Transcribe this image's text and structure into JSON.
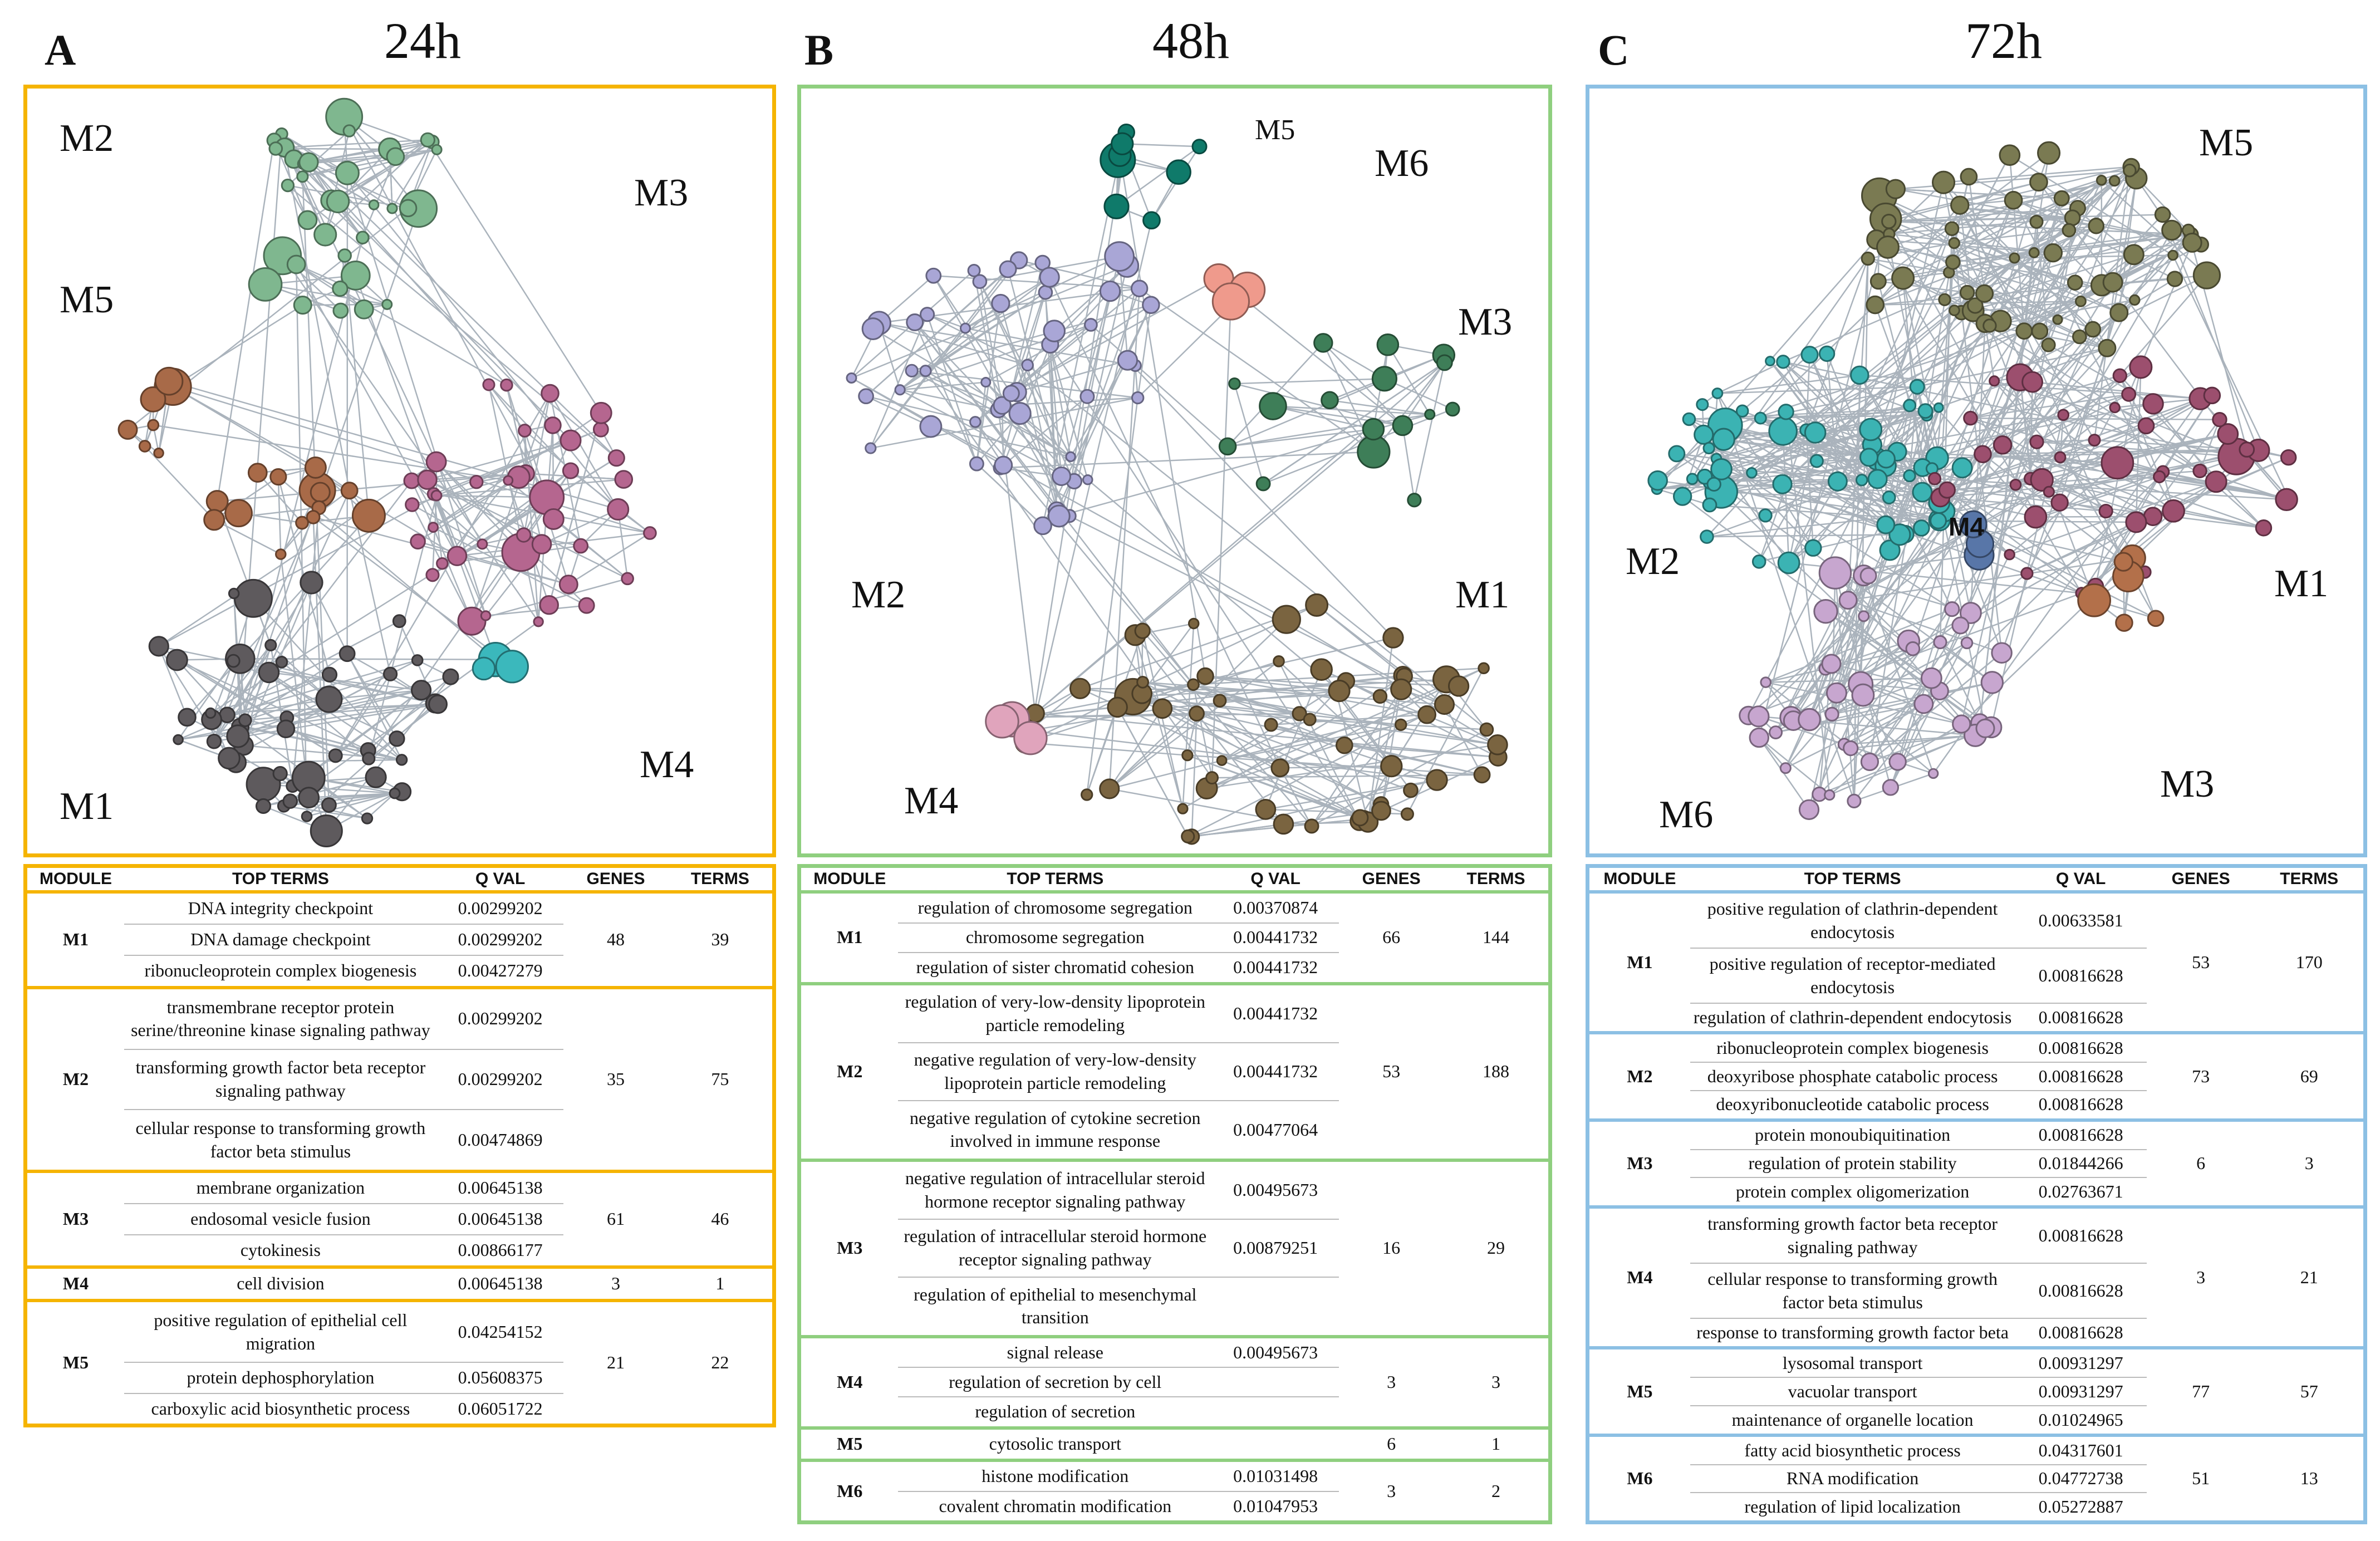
{
  "panels": [
    {
      "letter": "A",
      "time": "24h",
      "color": "#f5b400",
      "modules": [
        "M2",
        "M5",
        "M3",
        "M1",
        "M4"
      ],
      "nodes": {
        "M2": "#7fb78f",
        "M5": "#7fb78f",
        "M3": "#b5668f",
        "M1": "#5e5a5d",
        "M4": "#3bb8bc",
        "extra": "#a86a48"
      },
      "table": {
        "headers": [
          "MODULE",
          "TOP TERMS",
          "Q VAL",
          "GENES",
          "TERMS"
        ],
        "groups": [
          {
            "module": "M1",
            "genes": "48",
            "terms": "39",
            "rows": [
              {
                "term": "DNA integrity checkpoint",
                "q": "0.00299202"
              },
              {
                "term": "DNA damage checkpoint",
                "q": "0.00299202"
              },
              {
                "term": "ribonucleoprotein complex biogenesis",
                "q": "0.00427279"
              }
            ]
          },
          {
            "module": "M2",
            "genes": "35",
            "terms": "75",
            "rows": [
              {
                "term": "transmembrane receptor protein serine/threonine kinase signaling pathway",
                "q": "0.00299202"
              },
              {
                "term": "transforming growth factor beta receptor signaling pathway",
                "q": "0.00299202"
              },
              {
                "term": "cellular response to transforming growth factor beta stimulus",
                "q": "0.00474869"
              }
            ]
          },
          {
            "module": "M3",
            "genes": "61",
            "terms": "46",
            "rows": [
              {
                "term": "membrane organization",
                "q": "0.00645138"
              },
              {
                "term": "endosomal vesicle fusion",
                "q": "0.00645138"
              },
              {
                "term": "cytokinesis",
                "q": "0.00866177"
              }
            ]
          },
          {
            "module": "M4",
            "genes": "3",
            "terms": "1",
            "rows": [
              {
                "term": "cell division",
                "q": "0.00645138"
              }
            ]
          },
          {
            "module": "M5",
            "genes": "21",
            "terms": "22",
            "rows": [
              {
                "term": "positive regulation of epithelial cell migration",
                "q": "0.04254152"
              },
              {
                "term": "protein dephosphorylation",
                "q": "0.05608375"
              },
              {
                "term": "carboxylic acid biosynthetic process",
                "q": "0.06051722"
              }
            ]
          }
        ]
      }
    },
    {
      "letter": "B",
      "time": "48h",
      "color": "#8fcf7f",
      "modules": [
        "M5",
        "M6",
        "M3",
        "M2",
        "M1",
        "M4"
      ],
      "nodes": {
        "M5": "#0f7a6a",
        "M6": "#ef9a8c",
        "M3": "#3e7e58",
        "M2": "#a9a6d6",
        "M1": "#7a6440",
        "M4": "#e0a4bc"
      },
      "table": {
        "headers": [
          "MODULE",
          "TOP TERMS",
          "Q VAL",
          "GENES",
          "TERMS"
        ],
        "groups": [
          {
            "module": "M1",
            "genes": "66",
            "terms": "144",
            "rows": [
              {
                "term": "regulation of chromosome segregation",
                "q": "0.00370874"
              },
              {
                "term": "chromosome segregation",
                "q": "0.00441732"
              },
              {
                "term": "regulation of sister chromatid cohesion",
                "q": "0.00441732"
              }
            ]
          },
          {
            "module": "M2",
            "genes": "53",
            "terms": "188",
            "rows": [
              {
                "term": "regulation of very-low-density lipoprotein particle remodeling",
                "q": "0.00441732"
              },
              {
                "term": "negative regulation of very-low-density lipoprotein particle remodeling",
                "q": "0.00441732"
              },
              {
                "term": "negative regulation of cytokine secretion involved in immune response",
                "q": "0.00477064"
              }
            ]
          },
          {
            "module": "M3",
            "genes": "16",
            "terms": "29",
            "rows": [
              {
                "term": "negative regulation of intracellular steroid hormone receptor signaling pathway",
                "q": "0.00495673"
              },
              {
                "term": "regulation of intracellular steroid hormone receptor signaling pathway",
                "q": "0.00879251"
              },
              {
                "term": "regulation of epithelial to mesenchymal transition",
                "q": ""
              }
            ]
          },
          {
            "module": "M4",
            "genes": "3",
            "terms": "3",
            "rows": [
              {
                "term": "signal release",
                "q": "0.00495673"
              },
              {
                "term": "regulation of secretion by cell",
                "q": ""
              },
              {
                "term": "regulation of secretion",
                "q": ""
              }
            ]
          },
          {
            "module": "M5",
            "genes": "6",
            "terms": "1",
            "rows": [
              {
                "term": "cytosolic transport",
                "q": ""
              }
            ]
          },
          {
            "module": "M6",
            "genes": "3",
            "terms": "2",
            "rows": [
              {
                "term": "histone modification",
                "q": "0.01031498"
              },
              {
                "term": "covalent chromatin modification",
                "q": "0.01047953"
              }
            ]
          }
        ]
      }
    },
    {
      "letter": "C",
      "time": "72h",
      "color": "#8cc0e4",
      "modules": [
        "M5",
        "M2",
        "M4",
        "M1",
        "M6",
        "M3"
      ],
      "nodes": {
        "M5": "#7a7a52",
        "M2": "#3bb3b3",
        "M4": "#5876a8",
        "M1": "#9c4f6e",
        "M6": "#c7a6cf",
        "M3": "#b3704a"
      },
      "table": {
        "headers": [
          "MODULE",
          "TOP TERMS",
          "Q VAL",
          "GENES",
          "TERMS"
        ],
        "groups": [
          {
            "module": "M1",
            "genes": "53",
            "terms": "170",
            "rows": [
              {
                "term": "positive regulation of clathrin-dependent endocytosis",
                "q": "0.00633581"
              },
              {
                "term": "positive regulation of receptor-mediated endocytosis",
                "q": "0.00816628"
              },
              {
                "term": "regulation of clathrin-dependent endocytosis",
                "q": "0.00816628"
              }
            ]
          },
          {
            "module": "M2",
            "genes": "73",
            "terms": "69",
            "rows": [
              {
                "term": "ribonucleoprotein complex biogenesis",
                "q": "0.00816628"
              },
              {
                "term": "deoxyribose phosphate catabolic process",
                "q": "0.00816628"
              },
              {
                "term": "deoxyribonucleotide catabolic process",
                "q": "0.00816628"
              }
            ]
          },
          {
            "module": "M3",
            "genes": "6",
            "terms": "3",
            "rows": [
              {
                "term": "protein monoubiquitination",
                "q": "0.00816628"
              },
              {
                "term": "regulation of protein stability",
                "q": "0.01844266"
              },
              {
                "term": "protein complex oligomerization",
                "q": "0.02763671"
              }
            ]
          },
          {
            "module": "M4",
            "genes": "3",
            "terms": "21",
            "rows": [
              {
                "term": "transforming growth factor beta receptor signaling pathway",
                "q": "0.00816628"
              },
              {
                "term": "cellular response to transforming growth factor beta stimulus",
                "q": "0.00816628"
              },
              {
                "term": "response to transforming growth factor beta",
                "q": "0.00816628"
              }
            ]
          },
          {
            "module": "M5",
            "genes": "77",
            "terms": "57",
            "rows": [
              {
                "term": "lysosomal transport",
                "q": "0.00931297"
              },
              {
                "term": "vacuolar transport",
                "q": "0.00931297"
              },
              {
                "term": "maintenance of organelle location",
                "q": "0.01024965"
              }
            ]
          },
          {
            "module": "M6",
            "genes": "51",
            "terms": "13",
            "rows": [
              {
                "term": "fatty acid biosynthetic process",
                "q": "0.04317601"
              },
              {
                "term": "RNA modification",
                "q": "0.04772738"
              },
              {
                "term": "regulation of lipid localization",
                "q": "0.05272887"
              }
            ]
          }
        ]
      }
    }
  ]
}
